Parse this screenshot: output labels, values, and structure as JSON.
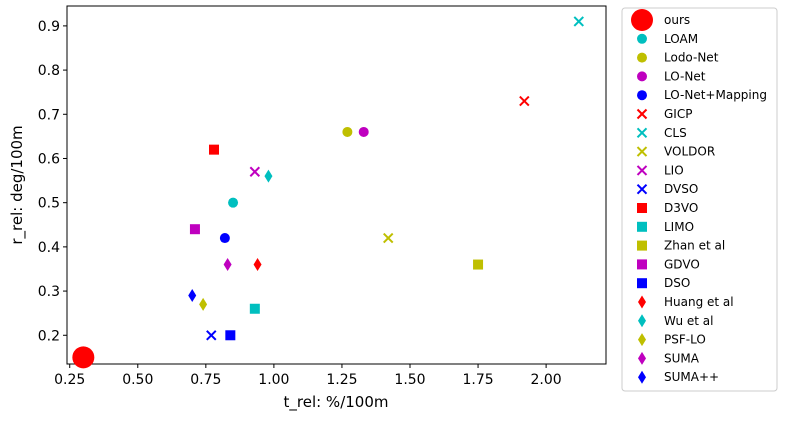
{
  "chart_data": {
    "type": "scatter",
    "title": "",
    "xlabel": "t_rel: %/100m",
    "ylabel": "r_rel: deg/100m",
    "xlim": [
      0.24,
      2.22
    ],
    "ylim": [
      0.135,
      0.945
    ],
    "xticks": [
      "0.25",
      "0.50",
      "0.75",
      "1.00",
      "1.25",
      "1.50",
      "1.75",
      "2.00"
    ],
    "yticks": [
      "0.2",
      "0.3",
      "0.4",
      "0.5",
      "0.6",
      "0.7",
      "0.8",
      "0.9"
    ],
    "grid": false,
    "legend_position": "outside-right",
    "series": [
      {
        "name": "ours",
        "marker": "circle-large",
        "color": "#ff0000",
        "x": 0.3,
        "y": 0.15
      },
      {
        "name": "LOAM",
        "marker": "circle",
        "color": "#00bfbf",
        "x": 0.85,
        "y": 0.5
      },
      {
        "name": "Lodo-Net",
        "marker": "circle",
        "color": "#bfbf00",
        "x": 1.27,
        "y": 0.66
      },
      {
        "name": "LO-Net",
        "marker": "circle",
        "color": "#bf00bf",
        "x": 1.33,
        "y": 0.66
      },
      {
        "name": "LO-Net+Mapping",
        "marker": "circle",
        "color": "#0000ff",
        "x": 0.82,
        "y": 0.42
      },
      {
        "name": "GICP",
        "marker": "x",
        "color": "#ff0000",
        "x": 1.92,
        "y": 0.73
      },
      {
        "name": "CLS",
        "marker": "x",
        "color": "#00bfbf",
        "x": 2.12,
        "y": 0.91
      },
      {
        "name": "VOLDOR",
        "marker": "x",
        "color": "#bfbf00",
        "x": 1.42,
        "y": 0.42
      },
      {
        "name": "LIO",
        "marker": "x",
        "color": "#bf00bf",
        "x": 0.93,
        "y": 0.57
      },
      {
        "name": "DVSO",
        "marker": "x",
        "color": "#0000ff",
        "x": 0.77,
        "y": 0.2
      },
      {
        "name": "D3VO",
        "marker": "square",
        "color": "#ff0000",
        "x": 0.78,
        "y": 0.62
      },
      {
        "name": "LIMO",
        "marker": "square",
        "color": "#00bfbf",
        "x": 0.93,
        "y": 0.26
      },
      {
        "name": "Zhan et al",
        "marker": "square",
        "color": "#bfbf00",
        "x": 1.75,
        "y": 0.36
      },
      {
        "name": "GDVO",
        "marker": "square",
        "color": "#bf00bf",
        "x": 0.71,
        "y": 0.44
      },
      {
        "name": "DSO",
        "marker": "square",
        "color": "#0000ff",
        "x": 0.84,
        "y": 0.2
      },
      {
        "name": "Huang et al",
        "marker": "diamond",
        "color": "#ff0000",
        "x": 0.94,
        "y": 0.36
      },
      {
        "name": "Wu et al",
        "marker": "diamond",
        "color": "#00bfbf",
        "x": 0.98,
        "y": 0.56
      },
      {
        "name": "PSF-LO",
        "marker": "diamond",
        "color": "#bfbf00",
        "x": 0.74,
        "y": 0.27
      },
      {
        "name": "SUMA",
        "marker": "diamond",
        "color": "#bf00bf",
        "x": 0.83,
        "y": 0.36
      },
      {
        "name": "SUMA++",
        "marker": "diamond",
        "color": "#0000ff",
        "x": 0.7,
        "y": 0.29
      }
    ]
  }
}
